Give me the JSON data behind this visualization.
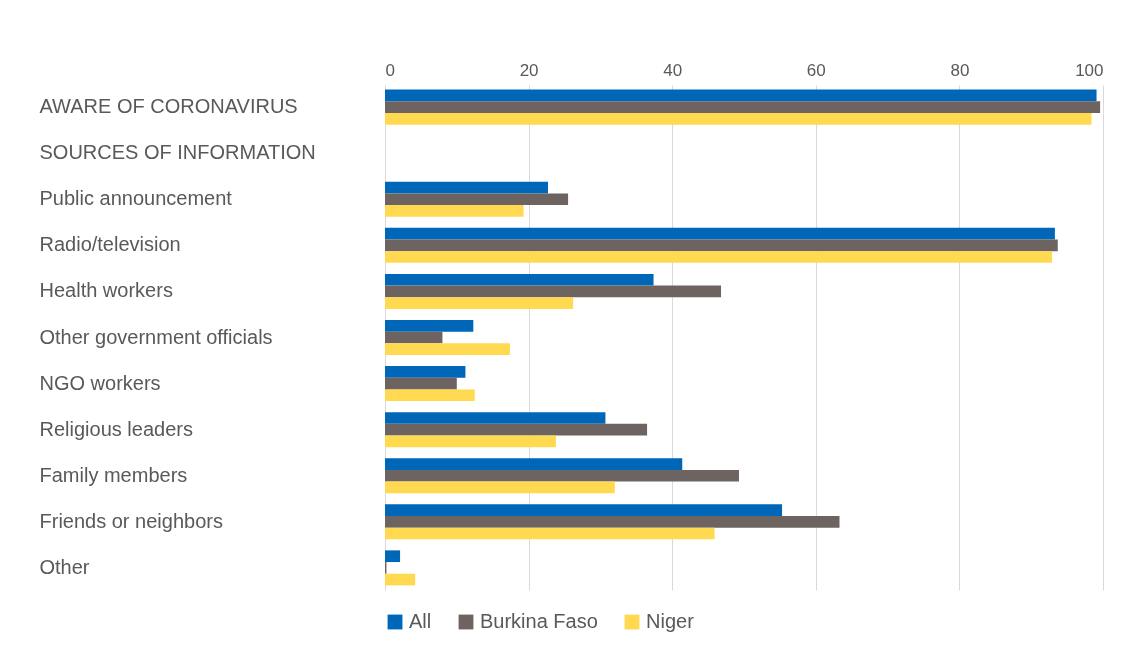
{
  "chart_data": {
    "type": "bar",
    "orientation": "horizontal",
    "categories": [
      "AWARE OF CORONAVIRUS",
      "SOURCES OF INFORMATION",
      "Public announcement",
      "Radio/television",
      "Health workers",
      "Other government officials",
      "NGO workers",
      "Religious leaders",
      "Family members",
      "Friends or neighbors",
      "Other"
    ],
    "series": [
      {
        "name": "All",
        "color": "#0066b8",
        "values": [
          99.1,
          null,
          22.7,
          93.3,
          37.4,
          12.3,
          11.2,
          30.7,
          41.4,
          55.3,
          2.1
        ]
      },
      {
        "name": "Burkina Faso",
        "color": "#6d6462",
        "values": [
          99.6,
          null,
          25.5,
          93.7,
          46.8,
          8.0,
          10.0,
          36.5,
          49.3,
          63.3,
          0.2
        ]
      },
      {
        "name": "Niger",
        "color": "#ffd94f",
        "values": [
          98.4,
          null,
          19.3,
          92.9,
          26.2,
          17.4,
          12.5,
          23.8,
          32.0,
          45.9,
          4.2
        ]
      }
    ],
    "xlim": [
      0,
      100
    ],
    "xticks": [
      0,
      20,
      40,
      60,
      80,
      100
    ],
    "grid": "x",
    "legend": "bottom"
  }
}
